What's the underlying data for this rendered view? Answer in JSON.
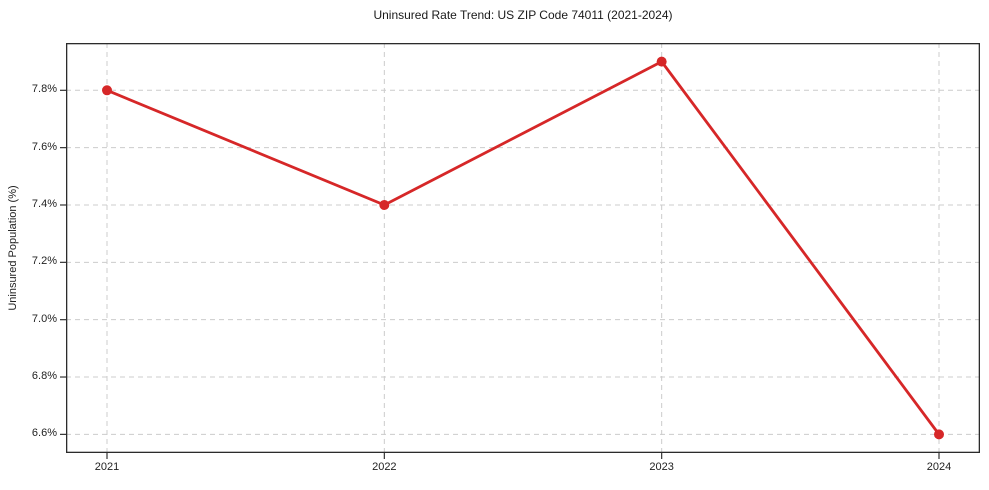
{
  "chart_data": {
    "type": "line",
    "title": "Uninsured Rate Trend: US ZIP Code 74011 (2021-2024)",
    "xlabel": "",
    "ylabel": "Uninsured Population (%)",
    "categories": [
      "2021",
      "2022",
      "2023",
      "2024"
    ],
    "series": [
      {
        "name": "uninsured-rate",
        "values": [
          7.8,
          7.4,
          7.9,
          6.6
        ],
        "color": "#d62728"
      }
    ],
    "yticks": [
      6.6,
      6.8,
      7.0,
      7.2,
      7.4,
      7.6,
      7.8
    ],
    "ytick_labels": [
      "6.6%",
      "6.8%",
      "7.0%",
      "7.2%",
      "7.4%",
      "7.6%",
      "7.8%"
    ],
    "ylim": [
      6.535,
      7.965
    ],
    "grid": true,
    "grid_style": "dashed",
    "legend_position": "none",
    "line_color": "#d62728",
    "grid_color": "#cccccc",
    "frame_color": "#2b2b2b",
    "marker": "circle"
  }
}
